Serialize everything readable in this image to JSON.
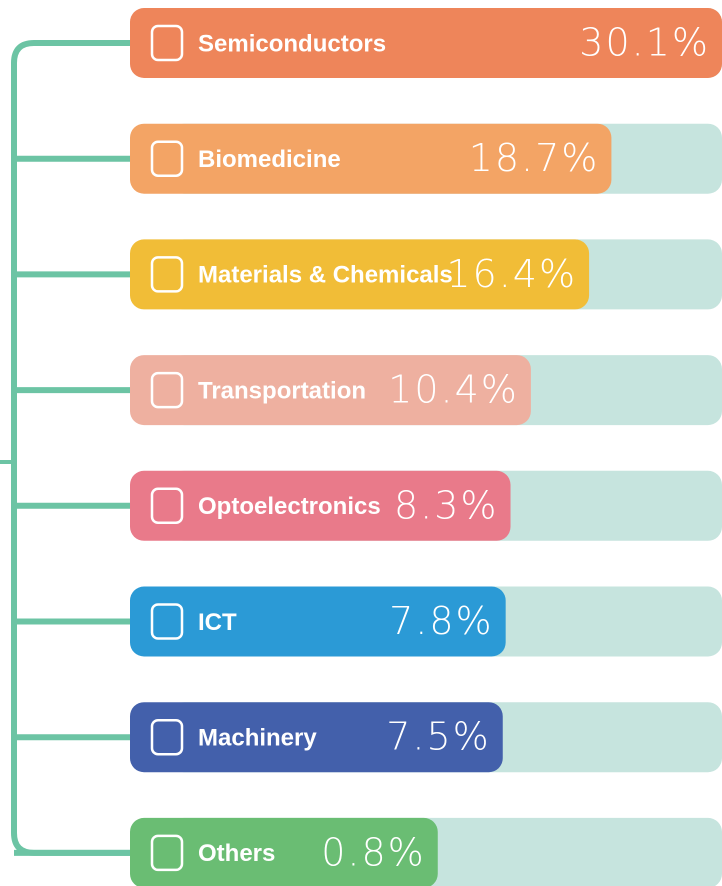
{
  "chart_data": {
    "type": "bar",
    "categories": [
      "Semiconductors",
      "Biomedicine",
      "Materials & Chemicals",
      "Transportation",
      "Optoelectronics",
      "ICT",
      "Machinery",
      "Others"
    ],
    "values": [
      30.1,
      18.7,
      16.4,
      10.4,
      8.3,
      7.8,
      7.5,
      0.8
    ],
    "value_labels": [
      "30.1%",
      "18.7%",
      "16.4%",
      "10.4%",
      "8.3%",
      "7.8%",
      "7.5%",
      "0.8%"
    ],
    "colors": [
      "#ee855a",
      "#f3a465",
      "#f1bd37",
      "#eeb0a0",
      "#e97a8a",
      "#2b9ad6",
      "#4360ab",
      "#6abd73"
    ]
  }
}
